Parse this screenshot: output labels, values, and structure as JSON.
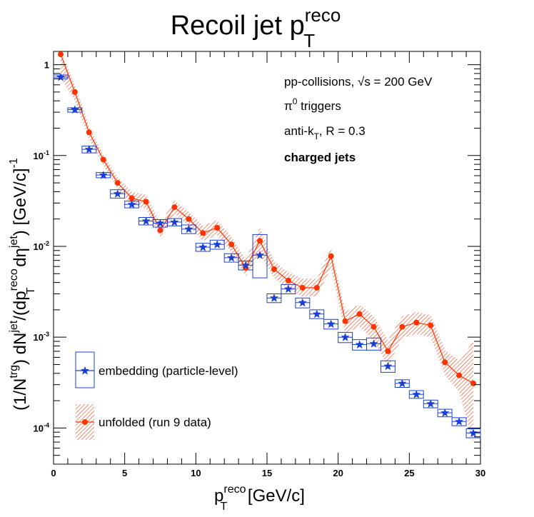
{
  "chart_data": {
    "type": "scatter",
    "title": "Recoil jet p",
    "title_sup": "reco",
    "title_sub": "T",
    "xlabel": {
      "main": "p",
      "sup": "reco",
      "sub": "T",
      "rest": " [GeV/c]"
    },
    "ylabel": {
      "p1": "(1/N",
      "sup1": "trg",
      "p2": ") dN",
      "sup2": "jet",
      "p3": "/(dp",
      "sup3": "reco",
      "sub3": "T",
      "p4": " dη",
      "sup4": "jet",
      "p5": ") [GeV/c]",
      "sup5": "-1"
    },
    "xlim": [
      0,
      30
    ],
    "ylim": [
      4e-05,
      1.4
    ],
    "yscale": "log",
    "x_ticks": [
      0,
      5,
      10,
      15,
      20,
      25,
      30
    ],
    "x_tick_labels": [
      "0",
      "5",
      "10",
      "15",
      "20",
      "25",
      "30"
    ],
    "y_ticks": [
      0.0001,
      0.001,
      0.01,
      0.1,
      1
    ],
    "y_tick_labels": [
      {
        "base": "10",
        "exp": "-4"
      },
      {
        "base": "10",
        "exp": "-3"
      },
      {
        "base": "10",
        "exp": "-2"
      },
      {
        "base": "10",
        "exp": "-1"
      },
      {
        "base": "1",
        "exp": ""
      }
    ],
    "annotations": {
      "line1": "pp-collisions, √s = 200 GeV",
      "line2_main": "π",
      "line2_sup": "0",
      "line2_rest": " triggers",
      "line3_main": "anti-k",
      "line3_sub": "T",
      "line3_rest": ", R = 0.3",
      "line4": "charged jets"
    },
    "legend": {
      "placement": "bottom-left",
      "embedding": "embedding (particle-level)",
      "unfolded": "unfolded (run 9 data)"
    },
    "series": [
      {
        "name": "embedding (particle-level)",
        "color": "#1a3fd6",
        "marker": "star",
        "x": [
          0.5,
          1.5,
          2.5,
          3.5,
          4.5,
          5.5,
          6.5,
          7.5,
          8.5,
          9.5,
          10.5,
          11.5,
          12.5,
          13.5,
          14.5,
          15.5,
          16.5,
          17.5,
          18.5,
          19.5,
          20.5,
          21.5,
          22.5,
          23.5,
          24.5,
          25.5,
          26.5,
          27.5,
          28.5,
          29.5
        ],
        "y": [
          0.73,
          0.32,
          0.117,
          0.061,
          0.038,
          0.029,
          0.019,
          0.018,
          0.0185,
          0.0155,
          0.0098,
          0.0105,
          0.0075,
          0.0062,
          0.008,
          0.0027,
          0.0034,
          0.0024,
          0.0018,
          0.0014,
          0.001,
          0.00083,
          0.00085,
          0.00048,
          0.00031,
          0.000235,
          0.000185,
          0.000147,
          0.000118,
          8.8e-05
        ],
        "box_lo": [
          0.7,
          0.3,
          0.107,
          0.057,
          0.034,
          0.0265,
          0.0172,
          0.0163,
          0.0168,
          0.0138,
          0.0088,
          0.0093,
          0.0067,
          0.0055,
          0.0045,
          0.0024,
          0.003,
          0.0021,
          0.0016,
          0.00123,
          0.00087,
          0.00072,
          0.00072,
          0.00041,
          0.00028,
          0.000212,
          0.000167,
          0.000133,
          0.000106,
          7.8e-05
        ],
        "box_hi": [
          0.77,
          0.335,
          0.127,
          0.065,
          0.042,
          0.0315,
          0.0208,
          0.0197,
          0.0202,
          0.0172,
          0.0108,
          0.0117,
          0.0083,
          0.0069,
          0.0135,
          0.003,
          0.0038,
          0.0027,
          0.002,
          0.00157,
          0.00113,
          0.00094,
          0.00098,
          0.00055,
          0.00034,
          0.000258,
          0.000203,
          0.000161,
          0.00013,
          9.8e-05
        ]
      },
      {
        "name": "unfolded (run 9 data)",
        "color": "#ff3300",
        "marker": "circle",
        "x": [
          0.5,
          1.5,
          2.5,
          3.5,
          4.5,
          5.5,
          6.5,
          7.5,
          8.5,
          9.5,
          10.5,
          11.5,
          12.5,
          13.5,
          14.5,
          15.5,
          16.5,
          17.5,
          18.5,
          19.5,
          20.5,
          21.5,
          22.5,
          23.5,
          24.5,
          25.5,
          26.5,
          27.5,
          28.5,
          29.5
        ],
        "y": [
          1.3,
          0.5,
          0.18,
          0.09,
          0.05,
          0.034,
          0.031,
          0.015,
          0.027,
          0.02,
          0.014,
          0.016,
          0.0105,
          0.0058,
          0.0115,
          0.0056,
          0.0042,
          0.0035,
          0.0035,
          0.0078,
          0.0015,
          0.0018,
          0.0013,
          0.0007,
          0.0013,
          0.00145,
          0.00135,
          0.00053,
          0.00038,
          0.00031
        ],
        "band_lo": [
          0.72,
          0.4,
          0.152,
          0.078,
          0.043,
          0.029,
          0.026,
          0.0125,
          0.023,
          0.0168,
          0.0115,
          0.0132,
          0.0086,
          0.0047,
          0.0082,
          0.0045,
          0.0034,
          0.0028,
          0.0028,
          0.0058,
          0.0011,
          0.0013,
          0.00092,
          0.00048,
          0.00098,
          0.00108,
          0.001,
          0.00038,
          0.00025,
          7e-05
        ],
        "band_hi": [
          1.4,
          0.6,
          0.21,
          0.102,
          0.058,
          0.04,
          0.037,
          0.018,
          0.032,
          0.024,
          0.017,
          0.0195,
          0.0128,
          0.0072,
          0.016,
          0.0068,
          0.0052,
          0.0044,
          0.0044,
          0.0098,
          0.0019,
          0.0023,
          0.0017,
          0.00092,
          0.0017,
          0.0019,
          0.00175,
          0.00072,
          0.00056,
          0.0009
        ]
      }
    ]
  }
}
